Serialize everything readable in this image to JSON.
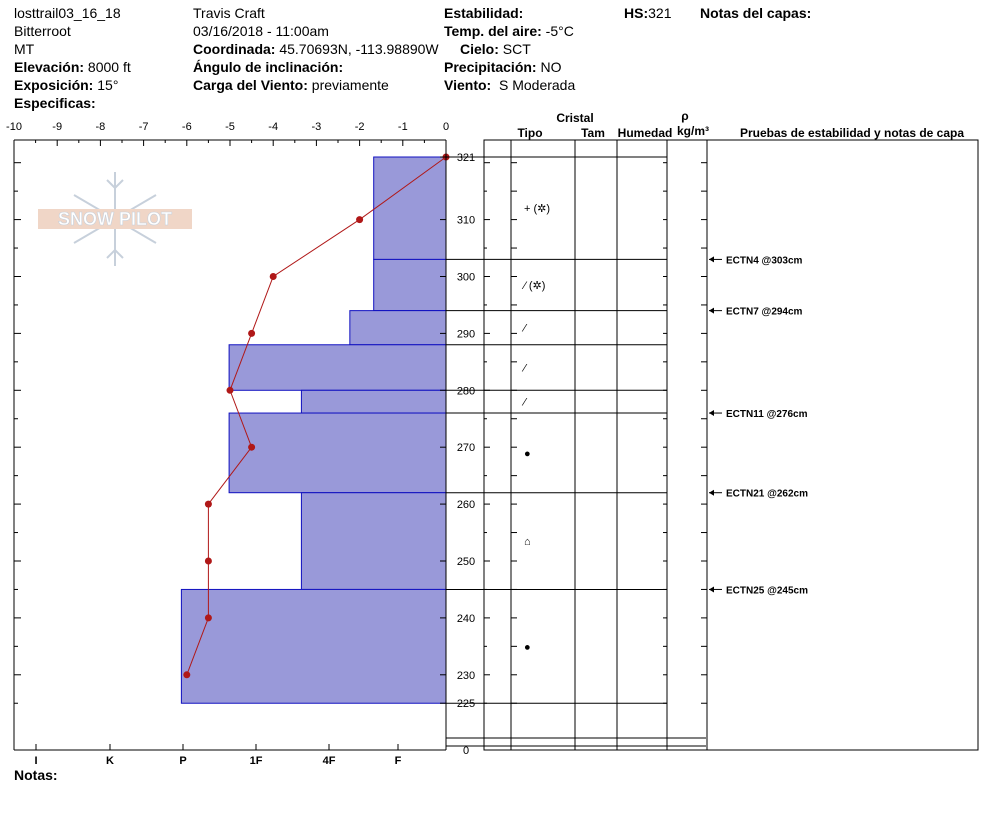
{
  "header": {
    "site": "losttrail03_16_18",
    "range": "Bitterroot",
    "state": "MT",
    "elevation_label": "Elevación:",
    "elevation_value": "8000 ft",
    "exposure_label": "Exposición:",
    "exposure_value": "15°",
    "specifics_label": "Especificas:",
    "observer": "Travis  Craft",
    "datetime": "03/16/2018 - 11:00am",
    "coord_label": "Coordinada:",
    "coord_value": "45.70693N, -113.98890W",
    "incline_label": "Ángulo de inclinación:",
    "wind_load_label": "Carga del Viento:",
    "wind_load_value": "previamente",
    "stability_label": "Estabilidad:",
    "air_temp_label": "Temp. del aire:",
    "air_temp_value": "-5°C",
    "sky_label": "Cielo:",
    "sky_value": "SCT",
    "precip_label": "Precipitación:",
    "precip_value": "NO",
    "wind_label": "Viento:",
    "wind_value": "S Moderada",
    "hs_label": "HS:",
    "hs_value": "321",
    "layer_notes_label": "Notas del capas:"
  },
  "footer": {
    "notes_label": "Notas:"
  },
  "logo": {
    "text": "SNOW PILOT"
  },
  "columns": {
    "crystal": "Cristal",
    "type": "Tipo",
    "size": "Tam",
    "moisture": "Humedad",
    "rho": "ρ",
    "density_unit": "kg/m³",
    "tests": "Pruebas de estabilidad y notas de capa"
  },
  "colors": {
    "layer_fill": "#9999d9",
    "layer_stroke": "#1010c0",
    "temp_line": "#b01818"
  },
  "chart_data": {
    "type": "area",
    "temp_axis": {
      "ticks": [
        -10,
        -9,
        -8,
        -7,
        -6,
        -5,
        -4,
        -3,
        -2,
        -1,
        0
      ]
    },
    "hardness_axis": {
      "ticks": [
        "I",
        "K",
        "P",
        "1F",
        "4F",
        "F"
      ]
    },
    "height_axis": {
      "range": [
        0,
        321
      ],
      "ticks": [
        321,
        310,
        300,
        290,
        280,
        270,
        260,
        250,
        240,
        230,
        225,
        0
      ]
    },
    "layers": [
      {
        "top": 321,
        "bottom": 303,
        "hardness": "F",
        "value": 1,
        "crystal": "+ (✲)"
      },
      {
        "top": 303,
        "bottom": 294,
        "hardness": "F",
        "value": 1,
        "crystal": "⁄ (✲)"
      },
      {
        "top": 294,
        "bottom": 288,
        "hardness": "F+",
        "value": 1.33,
        "crystal": "⁄"
      },
      {
        "top": 288,
        "bottom": 280,
        "hardness": "1F",
        "value": 3,
        "crystal": "⁄"
      },
      {
        "top": 280,
        "bottom": 276,
        "hardness": "4F",
        "value": 2,
        "crystal": "⁄"
      },
      {
        "top": 276,
        "bottom": 262,
        "hardness": "1F",
        "value": 3,
        "crystal": "●"
      },
      {
        "top": 262,
        "bottom": 245,
        "hardness": "4F",
        "value": 2,
        "crystal": "⌂"
      },
      {
        "top": 245,
        "bottom": 225,
        "hardness": "P",
        "value": 3.66,
        "crystal": "●"
      }
    ],
    "temperature": [
      {
        "height": 321,
        "temp": 0
      },
      {
        "height": 310,
        "temp": -2
      },
      {
        "height": 300,
        "temp": -4
      },
      {
        "height": 290,
        "temp": -4.5
      },
      {
        "height": 280,
        "temp": -5
      },
      {
        "height": 270,
        "temp": -4.5
      },
      {
        "height": 260,
        "temp": -5.5
      },
      {
        "height": 250,
        "temp": -5.5
      },
      {
        "height": 240,
        "temp": -5.5
      },
      {
        "height": 230,
        "temp": -6
      }
    ],
    "tests": [
      {
        "height": 303,
        "label": "ECTN4 @303cm"
      },
      {
        "height": 294,
        "label": "ECTN7 @294cm"
      },
      {
        "height": 276,
        "label": "ECTN11 @276cm"
      },
      {
        "height": 262,
        "label": "ECTN21 @262cm"
      },
      {
        "height": 245,
        "label": "ECTN25 @245cm"
      }
    ]
  }
}
